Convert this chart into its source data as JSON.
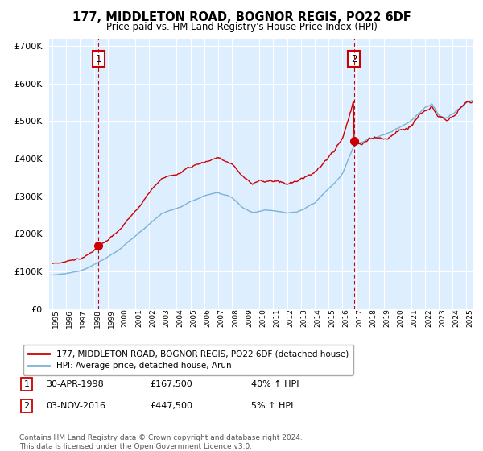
{
  "title": "177, MIDDLETON ROAD, BOGNOR REGIS, PO22 6DF",
  "subtitle": "Price paid vs. HM Land Registry's House Price Index (HPI)",
  "legend_line1": "177, MIDDLETON ROAD, BOGNOR REGIS, PO22 6DF (detached house)",
  "legend_line2": "HPI: Average price, detached house, Arun",
  "footnote": "Contains HM Land Registry data © Crown copyright and database right 2024.\nThis data is licensed under the Open Government Licence v3.0.",
  "table": [
    {
      "num": "1",
      "date": "30-APR-1998",
      "price": "£167,500",
      "hpi": "40% ↑ HPI"
    },
    {
      "num": "2",
      "date": "03-NOV-2016",
      "price": "£447,500",
      "hpi": "5% ↑ HPI"
    }
  ],
  "sale1_year": 1998.33,
  "sale1_price": 167500,
  "sale2_year": 2016.84,
  "sale2_price": 447500,
  "hpi_color": "#7ab3d4",
  "price_color": "#cc0000",
  "vline_color": "#cc0000",
  "background_color": "#ffffff",
  "chart_bg_color": "#ddeeff",
  "grid_color": "#ffffff",
  "ylim": [
    0,
    720000
  ],
  "yticks": [
    0,
    100000,
    200000,
    300000,
    400000,
    500000,
    600000,
    700000
  ],
  "xlim_start": 1994.7,
  "xlim_end": 2025.5
}
